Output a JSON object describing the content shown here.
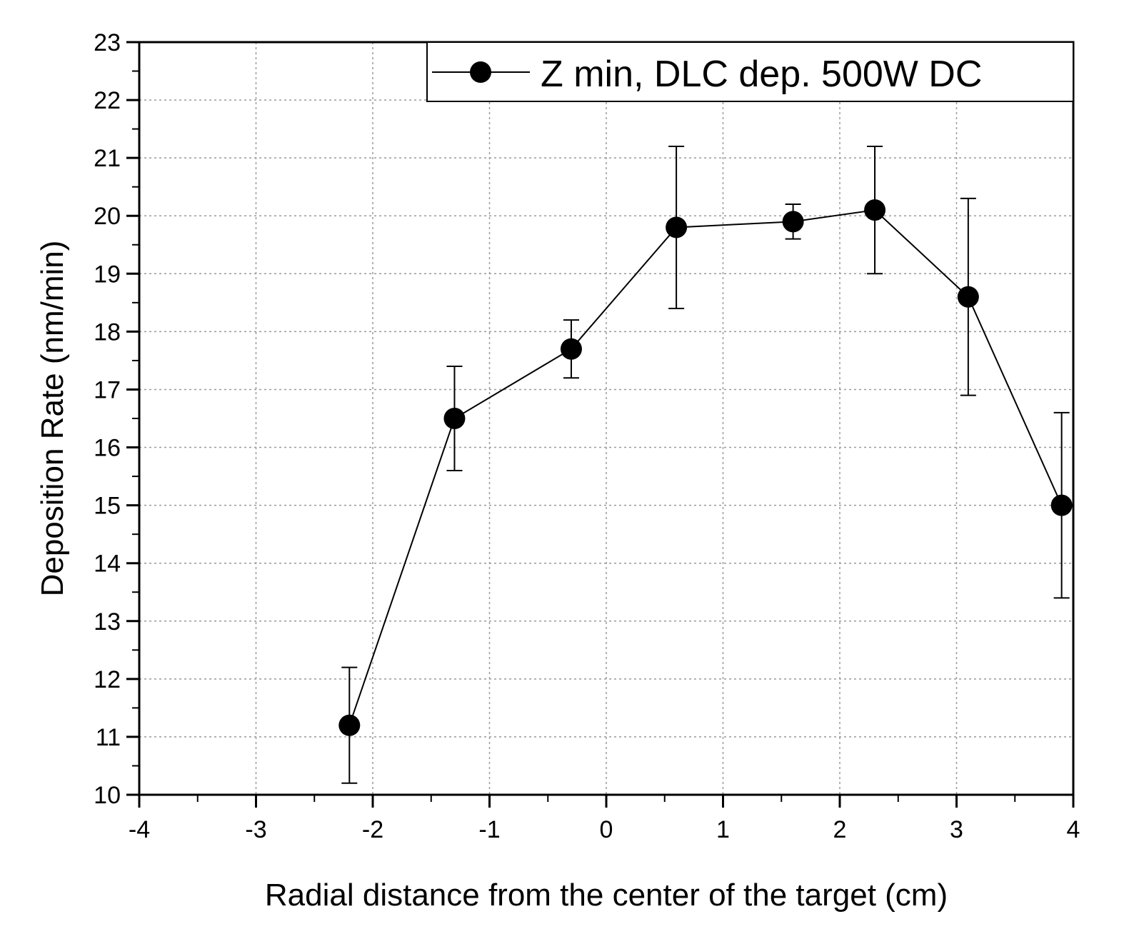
{
  "chart_data": {
    "type": "line",
    "title": "",
    "xlabel": "Radial distance from the center of the target (cm)",
    "ylabel": "Deposition Rate (nm/min)",
    "xlim": [
      -4,
      4
    ],
    "ylim": [
      10,
      23
    ],
    "xticks": [
      -4,
      -3,
      -2,
      -1,
      0,
      1,
      2,
      3,
      4
    ],
    "yticks": [
      10,
      11,
      12,
      13,
      14,
      15,
      16,
      17,
      18,
      19,
      20,
      21,
      22,
      23
    ],
    "grid": true,
    "legend_position": "top-right",
    "series": [
      {
        "name": "Z min, DLC dep. 500W DC",
        "color": "#000000",
        "marker": "circle",
        "x": [
          -2.2,
          -1.3,
          -0.3,
          0.6,
          1.6,
          2.3,
          3.1,
          3.9
        ],
        "y": [
          11.2,
          16.5,
          17.7,
          19.8,
          19.9,
          20.1,
          18.6,
          15.0
        ],
        "error_low": [
          10.2,
          15.6,
          17.2,
          18.4,
          19.6,
          19.0,
          16.9,
          13.4
        ],
        "error_high": [
          12.2,
          17.4,
          18.2,
          21.2,
          20.2,
          21.2,
          20.3,
          16.6
        ]
      }
    ]
  }
}
